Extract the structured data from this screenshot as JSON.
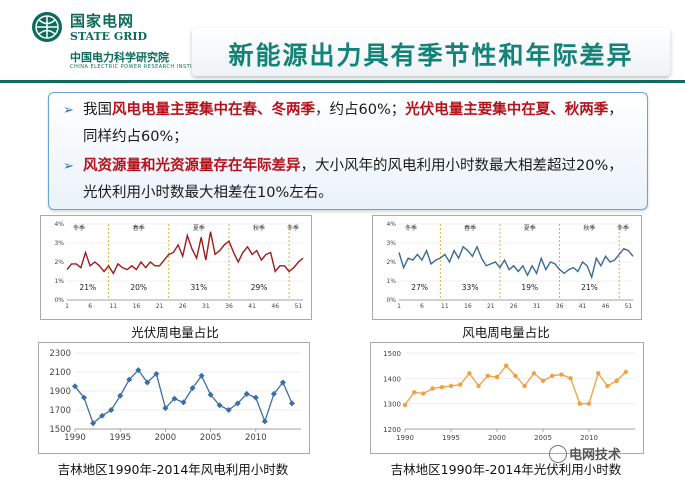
{
  "header": {
    "org_cn": "国家电网",
    "org_en": "STATE GRID",
    "institute_cn": "中国电力科学研究院",
    "institute_en": "CHINA ELECTRIC POWER RESEARCH INSTITUTE",
    "title": "新能源出力具有季节性和年际差异",
    "brand_color": "#0c6b5a",
    "title_color": "#138277"
  },
  "textbox": {
    "p1_a": "我国",
    "p1_b": "风电电量主要集中在春、冬两季",
    "p1_c": "，约占60%；",
    "p1_d": "光伏电量主要集中在夏、秋两季",
    "p1_e": "，同样约占60%；",
    "p2_a": "风资源量和光资源量存在年际差异",
    "p2_b": "，大小风年的风电利用小时数最大相差超过20%，光伏利用小时数最大相差在10%左右。",
    "highlight_color": "#b5121b",
    "bullet_icon": "arrow-bullet-icon"
  },
  "watermark": {
    "text": "电网技术",
    "icon": "wechat-icon"
  },
  "chart_data": [
    {
      "type": "line",
      "caption": "光伏周电量占比",
      "color": "#a01b1b",
      "x_ticks": [
        "1",
        "6",
        "11",
        "16",
        "21",
        "26",
        "31",
        "36",
        "41",
        "46",
        "51"
      ],
      "y_ticks": [
        "0%",
        "1%",
        "2%",
        "3%",
        "4%"
      ],
      "ylim": [
        0,
        4
      ],
      "seasons": [
        "冬季",
        "春季",
        "夏季",
        "秋季",
        "冬季"
      ],
      "season_bounds": [
        9,
        22,
        35,
        48
      ],
      "percent_labels": [
        "21%",
        "20%",
        "31%",
        "29%"
      ],
      "values": [
        1.6,
        1.9,
        1.9,
        1.7,
        2.5,
        1.8,
        2.0,
        1.8,
        1.5,
        1.8,
        1.4,
        1.9,
        1.7,
        1.6,
        1.8,
        1.6,
        2.0,
        1.7,
        2.0,
        1.8,
        1.8,
        2.1,
        2.4,
        2.5,
        2.9,
        2.3,
        3.4,
        2.7,
        2.2,
        3.3,
        2.1,
        3.6,
        2.4,
        2.6,
        2.9,
        3.1,
        2.5,
        2.0,
        2.5,
        2.8,
        2.4,
        2.6,
        2.1,
        2.4,
        2.5,
        1.5,
        1.8,
        1.8,
        1.5,
        1.7,
        2.0,
        2.2
      ]
    },
    {
      "type": "line",
      "caption": "风电周电量占比",
      "color": "#3c6a96",
      "x_ticks": [
        "1",
        "6",
        "11",
        "16",
        "21",
        "26",
        "31",
        "36",
        "41",
        "46",
        "51"
      ],
      "y_ticks": [
        "0%",
        "1%",
        "2%",
        "3%",
        "4%"
      ],
      "ylim": [
        0,
        4
      ],
      "seasons": [
        "冬季",
        "春季",
        "夏季",
        "秋季",
        "冬季"
      ],
      "season_bounds": [
        9,
        22,
        35,
        48
      ],
      "percent_labels": [
        "27%",
        "33%",
        "19%",
        "21%"
      ],
      "values": [
        2.5,
        1.7,
        2.2,
        2.1,
        2.4,
        2.1,
        2.6,
        1.9,
        2.1,
        2.2,
        2.4,
        2.0,
        2.6,
        2.2,
        2.8,
        2.6,
        2.3,
        2.8,
        2.2,
        1.8,
        1.9,
        2.0,
        1.7,
        2.1,
        1.6,
        1.8,
        1.5,
        1.8,
        1.3,
        1.8,
        1.4,
        2.2,
        1.6,
        2.0,
        1.9,
        1.6,
        1.4,
        1.6,
        1.7,
        1.5,
        2.0,
        1.8,
        1.2,
        2.2,
        1.8,
        2.3,
        2.0,
        2.1,
        2.4,
        2.7,
        2.6,
        2.3
      ]
    },
    {
      "type": "line",
      "caption": "吉林地区1990年-2014年风电利用小时数",
      "color": "#3b6ea8",
      "x": [
        1990,
        1991,
        1992,
        1993,
        1994,
        1995,
        1996,
        1997,
        1998,
        1999,
        2000,
        2001,
        2002,
        2003,
        2004,
        2005,
        2006,
        2007,
        2008,
        2009,
        2010,
        2011,
        2012,
        2013,
        2014
      ],
      "x_ticks": [
        1990,
        1995,
        2000,
        2005,
        2010
      ],
      "y_ticks": [
        1500,
        1700,
        1900,
        2100,
        2300
      ],
      "ylim": [
        1500,
        2300
      ],
      "values": [
        1950,
        1830,
        1560,
        1640,
        1700,
        1850,
        2020,
        2120,
        1990,
        2080,
        1720,
        1820,
        1780,
        1930,
        2060,
        1860,
        1750,
        1700,
        1770,
        1870,
        1830,
        1580,
        1870,
        1990,
        1770
      ]
    },
    {
      "type": "line",
      "caption": "吉林地区1990年-2014年光伏利用小时数",
      "color": "#f0a040",
      "x": [
        1990,
        1991,
        1992,
        1993,
        1994,
        1995,
        1996,
        1997,
        1998,
        1999,
        2000,
        2001,
        2002,
        2003,
        2004,
        2005,
        2006,
        2007,
        2008,
        2009,
        2010,
        2011,
        2012,
        2013,
        2014
      ],
      "x_ticks": [
        1990,
        1995,
        2000,
        2005,
        2010
      ],
      "y_ticks": [
        1200,
        1300,
        1400,
        1500
      ],
      "ylim": [
        1200,
        1500
      ],
      "values": [
        1295,
        1345,
        1340,
        1360,
        1365,
        1370,
        1375,
        1420,
        1370,
        1410,
        1405,
        1450,
        1410,
        1370,
        1420,
        1390,
        1410,
        1415,
        1400,
        1300,
        1300,
        1420,
        1370,
        1390,
        1425
      ]
    }
  ]
}
